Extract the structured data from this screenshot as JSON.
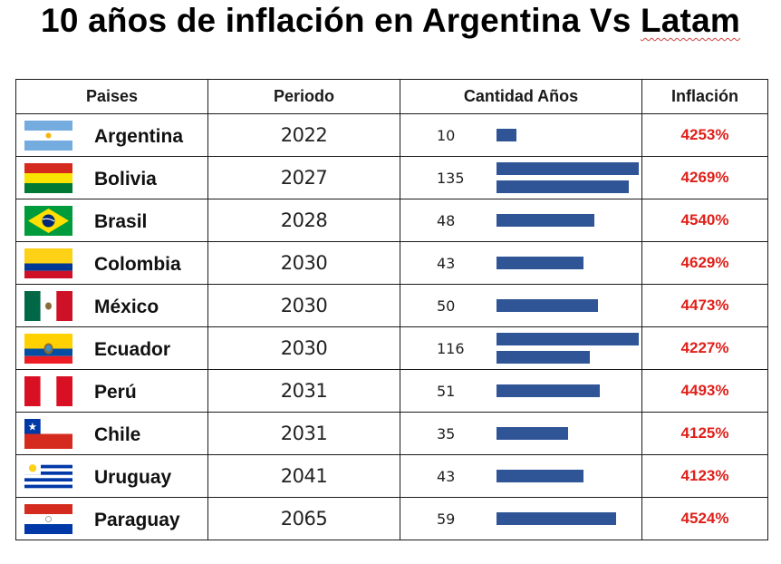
{
  "title": {
    "main": "10 años de inflación en Argentina Vs ",
    "highlight": "Latam"
  },
  "colors": {
    "bar": "#2f5597",
    "inflation": "#e0201a",
    "border": "#1a1a1a"
  },
  "headers": {
    "paises": "Paises",
    "periodo": "Periodo",
    "cantidad": "Cantidad Años",
    "inflacion": "Inflación"
  },
  "chart_data": {
    "type": "table",
    "title": "10 años de inflación en Argentina Vs Latam",
    "columns": [
      "Paises",
      "Periodo",
      "Cantidad Años",
      "Inflación"
    ],
    "bar_scale_max": 70,
    "rows": [
      {
        "flag": "argentina-flag",
        "pais": "Argentina",
        "periodo": "2022",
        "cantidad": 10,
        "cantidad_label": "10",
        "inflacion": "4253%"
      },
      {
        "flag": "bolivia-flag",
        "pais": "Bolivia",
        "periodo": "2027",
        "cantidad": 135,
        "cantidad_label": "135",
        "inflacion": "4269%"
      },
      {
        "flag": "brasil-flag",
        "pais": "Brasil",
        "periodo": "2028",
        "cantidad": 48,
        "cantidad_label": "48",
        "inflacion": "4540%"
      },
      {
        "flag": "colombia-flag",
        "pais": "Colombia",
        "periodo": "2030",
        "cantidad": 43,
        "cantidad_label": "43",
        "inflacion": "4629%"
      },
      {
        "flag": "mexico-flag",
        "pais": "México",
        "periodo": "2030",
        "cantidad": 50,
        "cantidad_label": "50",
        "inflacion": "4473%"
      },
      {
        "flag": "ecuador-flag",
        "pais": "Ecuador",
        "periodo": "2030",
        "cantidad": 116,
        "cantidad_label": "116",
        "inflacion": "4227%"
      },
      {
        "flag": "peru-flag",
        "pais": "Perú",
        "periodo": "2031",
        "cantidad": 51,
        "cantidad_label": "51",
        "inflacion": "4493%"
      },
      {
        "flag": "chile-flag",
        "pais": "Chile",
        "periodo": "2031",
        "cantidad": 35,
        "cantidad_label": "35",
        "inflacion": "4125%"
      },
      {
        "flag": "uruguay-flag",
        "pais": "Uruguay",
        "periodo": "2041",
        "cantidad": 43,
        "cantidad_label": "43",
        "inflacion": "4123%"
      },
      {
        "flag": "paraguay-flag",
        "pais": "Paraguay",
        "periodo": "2065",
        "cantidad": 59,
        "cantidad_label": "59",
        "inflacion": "4524%"
      }
    ]
  }
}
